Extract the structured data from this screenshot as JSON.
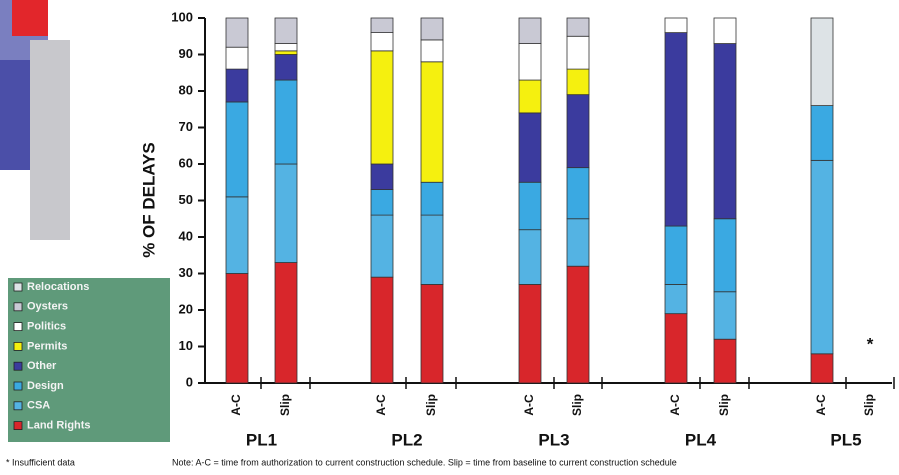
{
  "chart_data": {
    "type": "bar",
    "stacked": true,
    "y_label": "% OF DELAYS",
    "ylim": [
      0,
      100
    ],
    "yticks": [
      0,
      10,
      20,
      30,
      40,
      50,
      60,
      70,
      80,
      90,
      100
    ],
    "grid": false,
    "legend_position": "left",
    "categories": [
      "A-C",
      "Slip",
      "A-C",
      "Slip",
      "A-C",
      "Slip",
      "A-C",
      "Slip",
      "A-C",
      "Slip"
    ],
    "groups": [
      "PL1",
      "PL2",
      "PL3",
      "PL4",
      "PL5"
    ],
    "series": [
      {
        "name": "Land Rights",
        "color": "#d8262b",
        "values": [
          30,
          33,
          29,
          27,
          27,
          32,
          19,
          12,
          8,
          null
        ]
      },
      {
        "name": "CSA",
        "color": "#54b3e3",
        "values": [
          21,
          27,
          17,
          19,
          15,
          13,
          8,
          13,
          53,
          null
        ]
      },
      {
        "name": "Design",
        "color": "#3aa9e2",
        "values": [
          26,
          23,
          7,
          9,
          13,
          14,
          16,
          20,
          15,
          null
        ]
      },
      {
        "name": "Other",
        "color": "#3b3b9e",
        "values": [
          9,
          7,
          7,
          0,
          19,
          20,
          53,
          48,
          0,
          null
        ]
      },
      {
        "name": "Permits",
        "color": "#f5f00f",
        "values": [
          0,
          1,
          31,
          33,
          9,
          7,
          0,
          0,
          0,
          null
        ]
      },
      {
        "name": "Politics",
        "color": "#ffffff",
        "values": [
          6,
          2,
          5,
          6,
          10,
          9,
          4,
          7,
          0,
          null
        ]
      },
      {
        "name": "Oysters",
        "color": "#c9c9d4",
        "values": [
          8,
          7,
          4,
          6,
          7,
          5,
          0,
          0,
          0,
          null
        ]
      },
      {
        "name": "Relocations",
        "color": "#dde3e6",
        "values": [
          0,
          0,
          0,
          0,
          0,
          0,
          0,
          0,
          24,
          null
        ]
      }
    ],
    "annotation": "*",
    "footnote": "* Insufficient data",
    "note": "Note: A-C = time from authorization to current construction schedule. Slip = time from baseline to current construction schedule"
  }
}
